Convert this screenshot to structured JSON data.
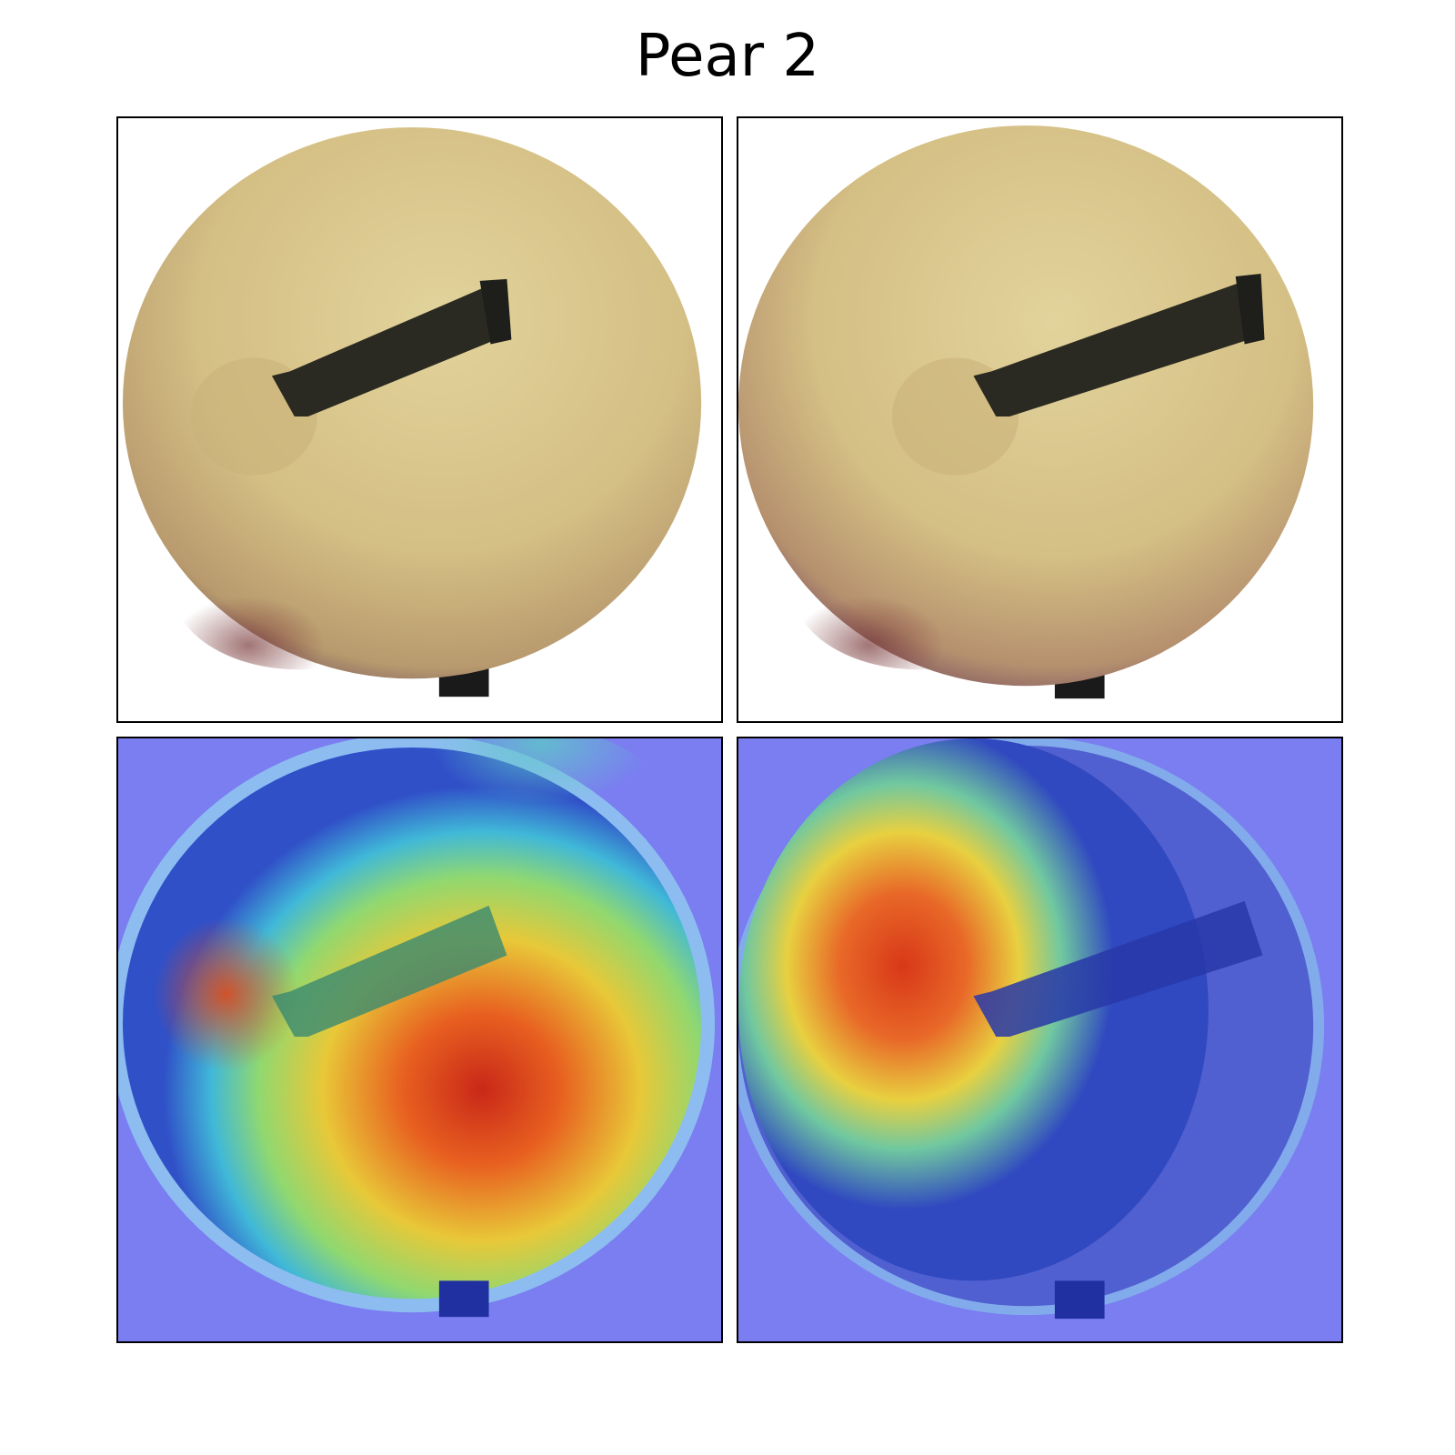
{
  "title": "Pear 2",
  "panels": [
    {
      "id": "original-left",
      "kind": "photo",
      "subject": "pear-top-view-with-stem"
    },
    {
      "id": "original-right",
      "kind": "photo",
      "subject": "pear-top-view-with-stem"
    },
    {
      "id": "heatmap-left",
      "kind": "saliency-overlay",
      "colormap": "jet"
    },
    {
      "id": "heatmap-right",
      "kind": "saliency-overlay",
      "colormap": "jet"
    }
  ],
  "colors": {
    "pear_skin": "#d8c48a",
    "pear_shadow": "#8a6a5a",
    "stem": "#2a2a22",
    "heat_low": "#7a7ef0",
    "heat_mid": "#e8e040",
    "heat_high": "#d83018"
  }
}
